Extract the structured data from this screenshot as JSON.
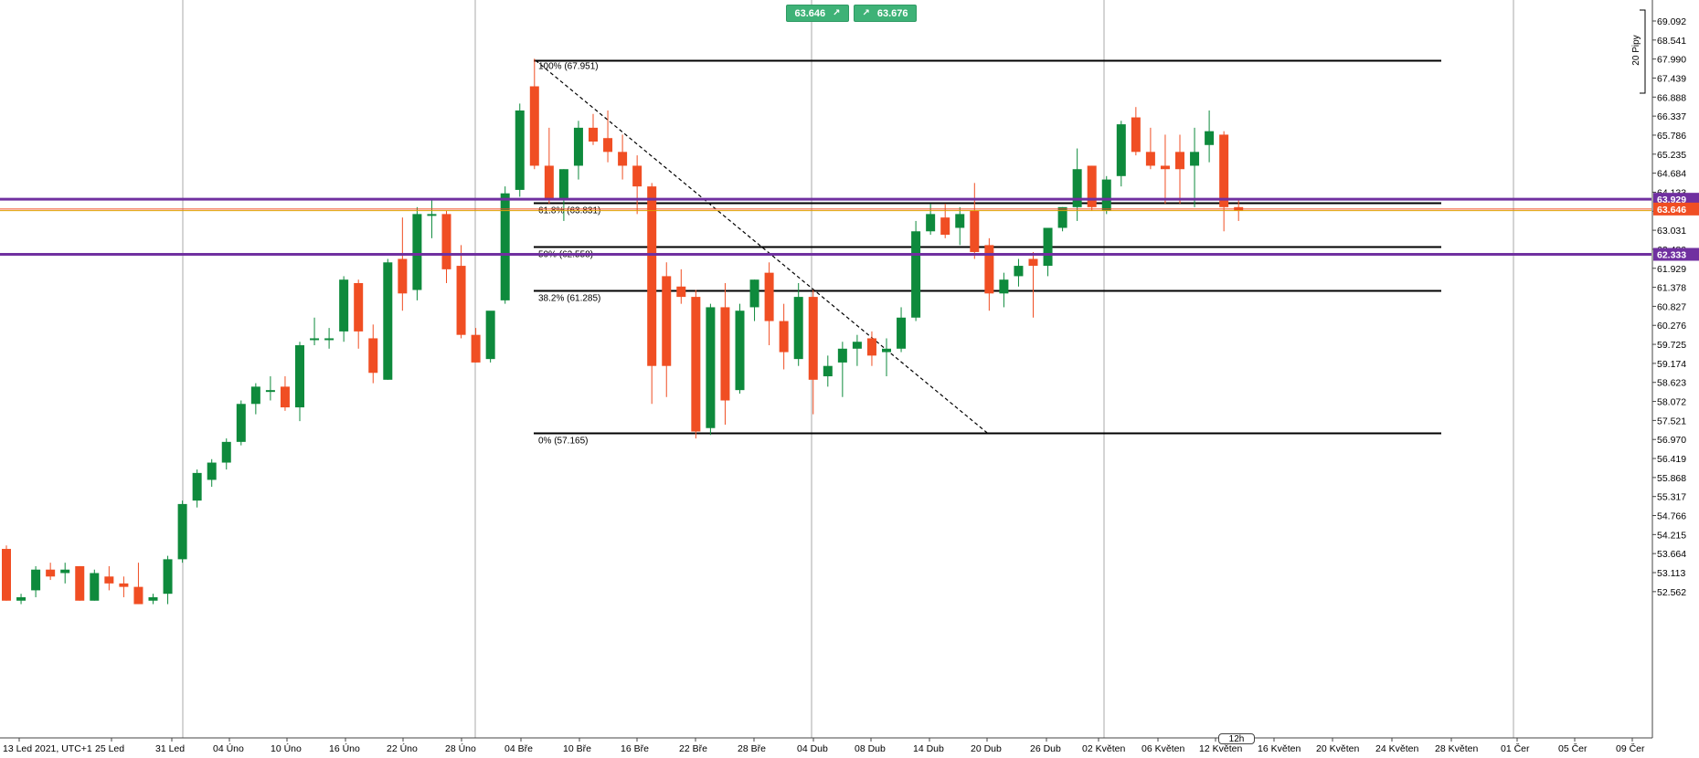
{
  "trade_panel": {
    "sell_price": "63.646",
    "buy_price": "63.676"
  },
  "timeframe": "12h",
  "scale_label": "20 Pipy",
  "price_tags": [
    {
      "value": 63.929,
      "label": "63.929",
      "color": "#7030a0"
    },
    {
      "value": 63.646,
      "label": "63.646",
      "color": "#f04e23"
    },
    {
      "value": 62.333,
      "label": "62.333",
      "color": "#7030a0"
    }
  ],
  "chart_data": {
    "type": "candlestick",
    "title": "",
    "xlabel": "",
    "ylabel": "",
    "ylim": [
      52.2,
      69.5
    ],
    "y_ticks": [
      "69.092",
      "68.541",
      "67.990",
      "67.439",
      "66.888",
      "66.337",
      "65.786",
      "65.235",
      "64.684",
      "64.133",
      "63.582",
      "63.031",
      "62.480",
      "61.929",
      "61.378",
      "60.827",
      "60.276",
      "59.725",
      "59.174",
      "58.623",
      "58.072",
      "57.521",
      "56.970",
      "56.419",
      "55.868",
      "55.317",
      "54.766",
      "54.215",
      "53.664",
      "53.113",
      "52.562"
    ],
    "x_ticks": [
      "13 Led 2021, UTC+1",
      "25 Led",
      "31 Led",
      "04 Úno",
      "10 Úno",
      "16 Úno",
      "22 Úno",
      "28 Úno",
      "04 Bře",
      "10 Bře",
      "16 Bře",
      "22 Bře",
      "28 Bře",
      "04 Dub",
      "08 Dub",
      "14 Dub",
      "20 Dub",
      "26 Dub",
      "02 Květen",
      "06 Květen",
      "12 Květen",
      "16 Květen",
      "20 Květen",
      "24 Květen",
      "28 Květen",
      "01 Čer",
      "05 Čer",
      "09 Čer"
    ],
    "grid": "vertical separators",
    "fibonacci": [
      {
        "level": "100%",
        "value": 67.951
      },
      {
        "level": "61.8%",
        "value": 63.831
      },
      {
        "level": "50%",
        "value": 62.558
      },
      {
        "level": "38.2%",
        "value": 61.285
      },
      {
        "level": "0%",
        "value": 57.165
      }
    ],
    "horizontal_lines": [
      63.929,
      63.646,
      62.333
    ],
    "candles": [
      {
        "o": 53.8,
        "h": 53.9,
        "l": 52.3,
        "c": 52.3
      },
      {
        "o": 52.3,
        "h": 52.5,
        "l": 52.2,
        "c": 52.4
      },
      {
        "o": 52.6,
        "h": 53.3,
        "l": 52.4,
        "c": 53.2
      },
      {
        "o": 53.2,
        "h": 53.4,
        "l": 52.9,
        "c": 53.0
      },
      {
        "o": 53.1,
        "h": 53.4,
        "l": 52.8,
        "c": 53.2
      },
      {
        "o": 53.3,
        "h": 53.3,
        "l": 52.3,
        "c": 52.3
      },
      {
        "o": 52.3,
        "h": 53.2,
        "l": 52.3,
        "c": 53.1
      },
      {
        "o": 53.0,
        "h": 53.3,
        "l": 52.6,
        "c": 52.8
      },
      {
        "o": 52.8,
        "h": 53.0,
        "l": 52.4,
        "c": 52.7
      },
      {
        "o": 52.7,
        "h": 53.4,
        "l": 52.2,
        "c": 52.2
      },
      {
        "o": 52.3,
        "h": 52.5,
        "l": 52.2,
        "c": 52.4
      },
      {
        "o": 52.5,
        "h": 53.6,
        "l": 52.2,
        "c": 53.5
      },
      {
        "o": 53.5,
        "h": 55.2,
        "l": 53.4,
        "c": 55.1
      },
      {
        "o": 55.2,
        "h": 56.1,
        "l": 55.0,
        "c": 56.0
      },
      {
        "o": 55.8,
        "h": 56.4,
        "l": 55.6,
        "c": 56.3
      },
      {
        "o": 56.3,
        "h": 57.0,
        "l": 56.1,
        "c": 56.9
      },
      {
        "o": 56.9,
        "h": 58.1,
        "l": 56.8,
        "c": 58.0
      },
      {
        "o": 58.0,
        "h": 58.6,
        "l": 57.7,
        "c": 58.5
      },
      {
        "o": 58.4,
        "h": 58.8,
        "l": 58.1,
        "c": 58.4
      },
      {
        "o": 58.5,
        "h": 58.8,
        "l": 57.8,
        "c": 57.9
      },
      {
        "o": 57.9,
        "h": 59.8,
        "l": 57.5,
        "c": 59.7
      },
      {
        "o": 59.9,
        "h": 60.5,
        "l": 59.7,
        "c": 59.9
      },
      {
        "o": 59.9,
        "h": 60.2,
        "l": 59.6,
        "c": 59.9
      },
      {
        "o": 60.1,
        "h": 61.7,
        "l": 59.8,
        "c": 61.6
      },
      {
        "o": 61.5,
        "h": 61.6,
        "l": 59.6,
        "c": 60.1
      },
      {
        "o": 59.9,
        "h": 60.3,
        "l": 58.6,
        "c": 58.9
      },
      {
        "o": 58.7,
        "h": 62.2,
        "l": 58.7,
        "c": 62.1
      },
      {
        "o": 62.2,
        "h": 63.4,
        "l": 60.7,
        "c": 61.2
      },
      {
        "o": 61.3,
        "h": 63.7,
        "l": 61.0,
        "c": 63.5
      },
      {
        "o": 63.5,
        "h": 63.9,
        "l": 62.8,
        "c": 63.5
      },
      {
        "o": 63.5,
        "h": 63.6,
        "l": 61.5,
        "c": 61.9
      },
      {
        "o": 62.0,
        "h": 62.6,
        "l": 59.9,
        "c": 60.0
      },
      {
        "o": 60.0,
        "h": 60.2,
        "l": 59.2,
        "c": 59.2
      },
      {
        "o": 59.3,
        "h": 60.6,
        "l": 59.2,
        "c": 60.7
      },
      {
        "o": 61.0,
        "h": 64.3,
        "l": 60.9,
        "c": 64.1
      },
      {
        "o": 64.2,
        "h": 66.7,
        "l": 64.0,
        "c": 66.5
      },
      {
        "o": 67.2,
        "h": 68.0,
        "l": 64.8,
        "c": 64.9
      },
      {
        "o": 64.9,
        "h": 66.0,
        "l": 63.8,
        "c": 63.9
      },
      {
        "o": 63.9,
        "h": 64.8,
        "l": 63.3,
        "c": 64.8
      },
      {
        "o": 64.9,
        "h": 66.2,
        "l": 64.5,
        "c": 66.0
      },
      {
        "o": 66.0,
        "h": 66.4,
        "l": 65.5,
        "c": 65.6
      },
      {
        "o": 65.7,
        "h": 66.5,
        "l": 65.0,
        "c": 65.3
      },
      {
        "o": 65.3,
        "h": 65.8,
        "l": 64.5,
        "c": 64.9
      },
      {
        "o": 64.9,
        "h": 65.2,
        "l": 63.5,
        "c": 64.3
      },
      {
        "o": 64.3,
        "h": 64.4,
        "l": 58.0,
        "c": 59.1
      },
      {
        "o": 61.7,
        "h": 62.1,
        "l": 58.2,
        "c": 59.1
      },
      {
        "o": 61.4,
        "h": 61.9,
        "l": 60.9,
        "c": 61.1
      },
      {
        "o": 61.1,
        "h": 61.3,
        "l": 57.0,
        "c": 57.2
      },
      {
        "o": 57.3,
        "h": 60.9,
        "l": 57.1,
        "c": 60.8
      },
      {
        "o": 60.8,
        "h": 61.5,
        "l": 57.4,
        "c": 58.1
      },
      {
        "o": 58.4,
        "h": 60.9,
        "l": 58.3,
        "c": 60.7
      },
      {
        "o": 60.8,
        "h": 61.6,
        "l": 60.4,
        "c": 61.6
      },
      {
        "o": 61.8,
        "h": 62.1,
        "l": 59.7,
        "c": 60.4
      },
      {
        "o": 60.4,
        "h": 60.9,
        "l": 59.0,
        "c": 59.5
      },
      {
        "o": 59.3,
        "h": 61.5,
        "l": 59.1,
        "c": 61.1
      },
      {
        "o": 61.1,
        "h": 61.3,
        "l": 57.7,
        "c": 58.7
      },
      {
        "o": 58.8,
        "h": 59.4,
        "l": 58.5,
        "c": 59.1
      },
      {
        "o": 59.2,
        "h": 59.8,
        "l": 58.2,
        "c": 59.6
      },
      {
        "o": 59.6,
        "h": 60.0,
        "l": 59.1,
        "c": 59.8
      },
      {
        "o": 59.9,
        "h": 60.1,
        "l": 59.1,
        "c": 59.4
      },
      {
        "o": 59.5,
        "h": 59.9,
        "l": 58.8,
        "c": 59.6
      },
      {
        "o": 59.6,
        "h": 60.8,
        "l": 59.5,
        "c": 60.5
      },
      {
        "o": 60.5,
        "h": 63.3,
        "l": 60.4,
        "c": 63.0
      },
      {
        "o": 63.0,
        "h": 63.8,
        "l": 62.9,
        "c": 63.5
      },
      {
        "o": 63.4,
        "h": 63.8,
        "l": 62.8,
        "c": 62.9
      },
      {
        "o": 63.1,
        "h": 63.7,
        "l": 62.6,
        "c": 63.5
      },
      {
        "o": 63.6,
        "h": 64.4,
        "l": 62.2,
        "c": 62.4
      },
      {
        "o": 62.6,
        "h": 62.8,
        "l": 60.7,
        "c": 61.2
      },
      {
        "o": 61.2,
        "h": 61.8,
        "l": 60.8,
        "c": 61.6
      },
      {
        "o": 61.7,
        "h": 62.2,
        "l": 61.4,
        "c": 62.0
      },
      {
        "o": 62.2,
        "h": 62.4,
        "l": 60.5,
        "c": 62.0
      },
      {
        "o": 62.0,
        "h": 63.0,
        "l": 61.7,
        "c": 63.1
      },
      {
        "o": 63.1,
        "h": 63.7,
        "l": 63.0,
        "c": 63.7
      },
      {
        "o": 63.7,
        "h": 65.4,
        "l": 63.3,
        "c": 64.8
      },
      {
        "o": 64.9,
        "h": 64.9,
        "l": 63.6,
        "c": 63.7
      },
      {
        "o": 63.6,
        "h": 64.6,
        "l": 63.5,
        "c": 64.5
      },
      {
        "o": 64.6,
        "h": 66.2,
        "l": 64.3,
        "c": 66.1
      },
      {
        "o": 66.3,
        "h": 66.6,
        "l": 65.2,
        "c": 65.3
      },
      {
        "o": 65.3,
        "h": 66.0,
        "l": 64.8,
        "c": 64.9
      },
      {
        "o": 64.9,
        "h": 65.8,
        "l": 63.8,
        "c": 64.8
      },
      {
        "o": 65.3,
        "h": 65.8,
        "l": 63.8,
        "c": 64.8
      },
      {
        "o": 64.9,
        "h": 66.0,
        "l": 63.7,
        "c": 65.3
      },
      {
        "o": 65.5,
        "h": 66.5,
        "l": 65.0,
        "c": 65.9
      },
      {
        "o": 65.8,
        "h": 65.9,
        "l": 63.0,
        "c": 63.7
      },
      {
        "o": 63.7,
        "h": 63.9,
        "l": 63.3,
        "c": 63.6
      }
    ]
  }
}
